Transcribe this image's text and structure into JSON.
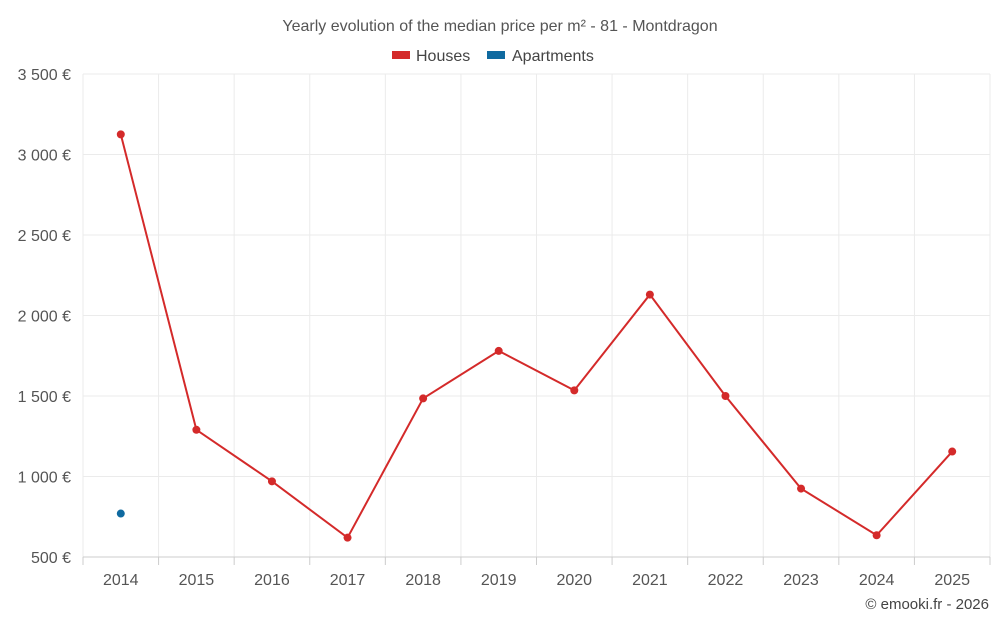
{
  "chart_data": {
    "type": "line",
    "title": "Yearly evolution of the median price per m² - 81 - Montdragon",
    "categories": [
      "2014",
      "2015",
      "2016",
      "2017",
      "2018",
      "2019",
      "2020",
      "2021",
      "2022",
      "2023",
      "2024",
      "2025"
    ],
    "series": [
      {
        "name": "Houses",
        "color": "#d42a2a",
        "values": [
          3125,
          1290,
          970,
          620,
          1485,
          1780,
          1535,
          2130,
          1500,
          925,
          635,
          1155
        ]
      },
      {
        "name": "Apartments",
        "color": "#0f6aa0",
        "values": [
          770,
          null,
          null,
          null,
          null,
          null,
          null,
          null,
          null,
          null,
          null,
          null
        ]
      }
    ],
    "ylim": [
      500,
      3500
    ],
    "yticks": [
      500,
      1000,
      1500,
      2000,
      2500,
      3000,
      3500
    ],
    "ytick_labels": [
      "500 €",
      "1 000 €",
      "1 500 €",
      "2 000 €",
      "2 500 €",
      "3 000 €",
      "3 500 €"
    ],
    "xlabel": "",
    "ylabel": "",
    "grid": true,
    "legend_position": "top-center"
  },
  "credit": "© emooki.fr - 2026"
}
